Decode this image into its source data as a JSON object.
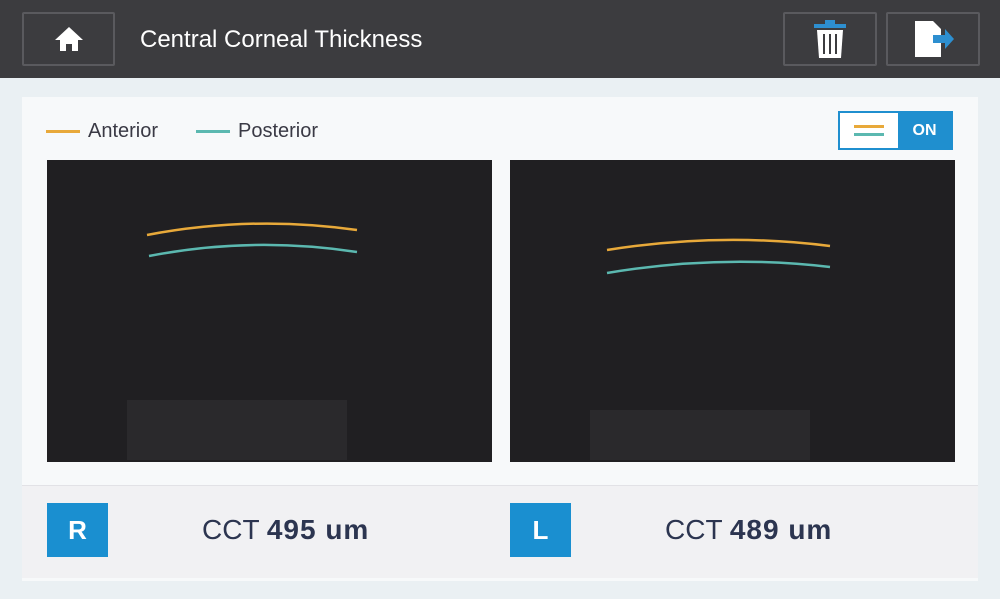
{
  "header": {
    "title": "Central Corneal Thickness"
  },
  "legend": {
    "items": [
      "Anterior",
      "Posterior"
    ],
    "toggle": "ON"
  },
  "results": [
    {
      "eye": "R",
      "label": "CCT",
      "value": "495 um"
    },
    {
      "eye": "L",
      "label": "CCT",
      "value": "489 um"
    }
  ]
}
